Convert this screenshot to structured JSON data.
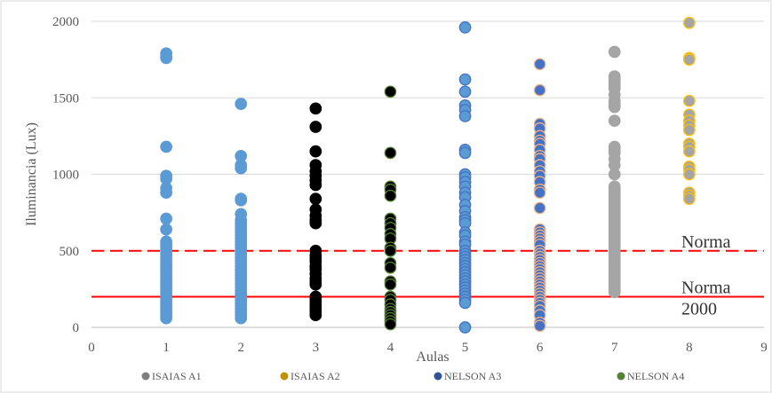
{
  "chart_data": {
    "type": "scatter",
    "title": "",
    "xlabel": "Aulas",
    "ylabel": "Iluminancia (Lux)",
    "xlim": [
      0,
      9
    ],
    "ylim": [
      0,
      2000
    ],
    "x_ticks": [
      0,
      1,
      2,
      3,
      4,
      5,
      6,
      7,
      8,
      9
    ],
    "y_ticks": [
      0,
      500,
      1000,
      1500,
      2000
    ],
    "grid": "horizontal",
    "legend_position": "bottom",
    "legend": [
      {
        "label": "ISAIAS A1",
        "color": "#7f7f7f"
      },
      {
        "label": "ISAIAS A2",
        "color": "#bf9000"
      },
      {
        "label": "NELSON A3",
        "color": "#2f5597"
      },
      {
        "label": "NELSON A4",
        "color": "#548235"
      }
    ],
    "reference_lines": [
      {
        "label": "Norma",
        "y": 500,
        "style": "dashed",
        "color": "#ff0000"
      },
      {
        "label": "Norma 2000",
        "y": 200,
        "style": "solid",
        "color": "#ff0000"
      }
    ],
    "series": [
      {
        "x": 1,
        "fill": "#5b9bd5",
        "stroke": "#5b9bd5",
        "values": [
          1790,
          1770,
          1760,
          1180,
          990,
          970,
          910,
          880,
          710,
          640,
          560,
          540,
          520,
          500,
          480,
          460,
          440,
          420,
          400,
          380,
          360,
          340,
          320,
          300,
          280,
          260,
          240,
          220,
          200,
          180,
          160,
          140,
          120,
          100,
          80,
          60
        ]
      },
      {
        "x": 2,
        "fill": "#5b9bd5",
        "stroke": "#5b9bd5",
        "values": [
          1460,
          1120,
          1060,
          1040,
          840,
          830,
          740,
          700,
          680,
          660,
          640,
          620,
          600,
          580,
          560,
          540,
          520,
          500,
          480,
          460,
          440,
          420,
          400,
          380,
          360,
          340,
          320,
          300,
          280,
          260,
          240,
          220,
          200,
          180,
          160,
          140,
          120,
          100,
          80,
          60
        ]
      },
      {
        "x": 3,
        "fill": "#000000",
        "stroke": "#000000",
        "values": [
          1430,
          1310,
          1150,
          1060,
          1020,
          990,
          960,
          930,
          840,
          770,
          730,
          700,
          680,
          500,
          470,
          450,
          430,
          400,
          380,
          350,
          320,
          300,
          280,
          200,
          180,
          160,
          140,
          120,
          100,
          80
        ]
      },
      {
        "x": 4,
        "fill": "#000000",
        "stroke": "#548235",
        "values": [
          1540,
          1140,
          920,
          900,
          860,
          710,
          680,
          650,
          610,
          580,
          520,
          500,
          420,
          390,
          300,
          280,
          200,
          180,
          150,
          120,
          100,
          80,
          60,
          40,
          20
        ]
      },
      {
        "x": 5,
        "fill": "#5b9bd5",
        "stroke": "#4472c4",
        "values": [
          1960,
          1620,
          1540,
          1450,
          1420,
          1380,
          1160,
          1140,
          1000,
          980,
          950,
          920,
          880,
          850,
          800,
          760,
          720,
          700,
          680,
          620,
          600,
          560,
          540,
          500,
          480,
          460,
          440,
          420,
          400,
          380,
          360,
          340,
          320,
          300,
          280,
          260,
          240,
          220,
          200,
          180,
          160,
          0
        ]
      },
      {
        "x": 6,
        "fill": "#4472c4",
        "stroke": "#f4b183",
        "values": [
          1720,
          1550,
          1330,
          1300,
          1250,
          1220,
          1200,
          1160,
          1120,
          1100,
          1060,
          1020,
          990,
          950,
          900,
          880,
          780,
          640,
          620,
          600,
          580,
          560,
          540,
          500,
          480,
          460,
          440,
          420,
          400,
          380,
          360,
          340,
          320,
          300,
          280,
          260,
          240,
          220,
          200,
          180,
          160,
          140,
          110,
          80,
          30,
          10
        ]
      },
      {
        "x": 7,
        "fill": "#a5a5a5",
        "stroke": "#a5a5a5",
        "values": [
          1800,
          1640,
          1620,
          1600,
          1580,
          1560,
          1520,
          1480,
          1460,
          1440,
          1350,
          1180,
          1160,
          1140,
          1100,
          1060,
          1000,
          920,
          900,
          880,
          860,
          840,
          820,
          800,
          780,
          760,
          740,
          720,
          700,
          680,
          660,
          640,
          620,
          600,
          580,
          560,
          540,
          520,
          500,
          480,
          460,
          440,
          420,
          400,
          380,
          360,
          340,
          320,
          300,
          280,
          260,
          240,
          230
        ]
      },
      {
        "x": 8,
        "fill": "#a5a5a5",
        "stroke": "#ffc000",
        "values": [
          1990,
          1760,
          1750,
          1480,
          1390,
          1350,
          1320,
          1290,
          1200,
          1180,
          1150,
          1050,
          1030,
          1000,
          880,
          860,
          840
        ]
      }
    ]
  }
}
